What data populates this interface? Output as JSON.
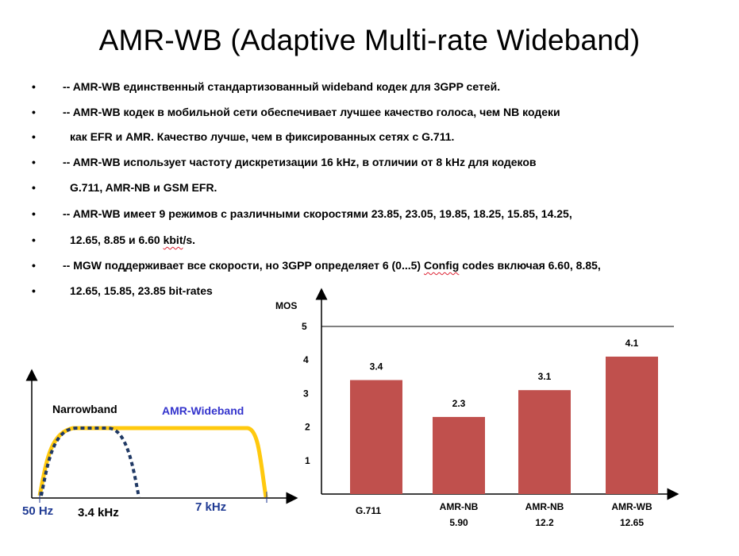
{
  "title": "AMR-WB (Adaptive Multi-rate Wideband)",
  "bullets": [
    {
      "dot": "•",
      "text": "-- AMR-WB единственный стандартизованный wideband кодек для 3GPP сетей."
    },
    {
      "dot": "•",
      "text": "-- AMR-WB кодек в мобильной сети обеспечивает лучшее качество голоса, чем NB кодеки"
    },
    {
      "dot": "•",
      "text": "как EFR и AMR. Качество лучше, чем в фиксированных сетях с G.711."
    },
    {
      "dot": "•",
      "text": "-- AMR-WB использует частоту дискретизации 16 kHz, в отличии от 8 kHz для кодеков"
    },
    {
      "dot": "•",
      "text": "G.711, AMR-NB и GSM EFR."
    },
    {
      "dot": "•",
      "text": "-- AMR-WB имеет 9 режимов с различными скоростями 23.85, 23.05, 19.85, 18.25, 15.85, 14.25,"
    },
    {
      "dot": "•",
      "text_a": "12.65, 8.85 и 6.60 ",
      "text_b": "kbit",
      "text_c": "/s."
    },
    {
      "dot": "•",
      "text_a": "-- MGW поддерживает все скорости, но 3GPP определяет 6 (0...5) ",
      "text_b": "Config",
      "text_c": " codes включая 6.60, 8.85,"
    },
    {
      "dot": "•",
      "text": "12.65, 15.85, 23.85 bit-rates"
    }
  ],
  "bandwidth_diagram": {
    "narrowband_label": "Narrowband",
    "wideband_label": "AMR-Wideband",
    "freq_labels": {
      "low": "50 Hz",
      "nb_high": "3.4 kHz",
      "wb_high": "7 kHz"
    },
    "colors": {
      "wideband": "#ffc90e",
      "narrowband": "#1f3864",
      "wb_label": "#3333cc",
      "freq_label": "#1f3a93"
    }
  },
  "chart_data": {
    "type": "bar",
    "ylabel": "MOS",
    "ylim": [
      0,
      5.5
    ],
    "yticks": [
      1,
      2,
      3,
      4,
      5
    ],
    "reference_line": 5,
    "categories": [
      {
        "line1": "G.711",
        "line2": ""
      },
      {
        "line1": "AMR-NB",
        "line2": "5.90"
      },
      {
        "line1": "AMR-NB",
        "line2": "12.2"
      },
      {
        "line1": "AMR-WB",
        "line2": "12.65"
      }
    ],
    "values": [
      3.4,
      2.3,
      3.1,
      4.1
    ],
    "data_labels": [
      "3.4",
      "2.3",
      "3.1",
      "4.1"
    ],
    "bar_color": "#c0504d",
    "grid": false
  }
}
